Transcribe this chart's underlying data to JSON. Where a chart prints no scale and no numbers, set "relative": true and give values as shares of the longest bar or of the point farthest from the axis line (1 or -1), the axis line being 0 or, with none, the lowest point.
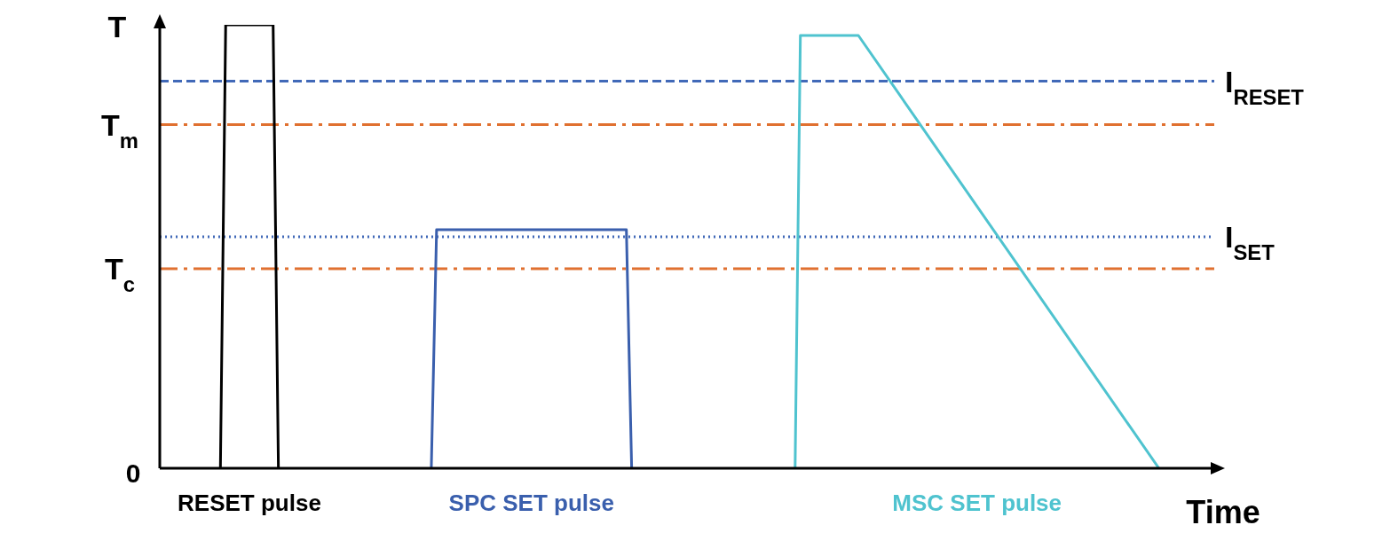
{
  "chart_data": {
    "type": "line",
    "relative": true,
    "ylabel": "T",
    "xlabel": "Time",
    "line_style": "solid",
    "categories": [
      null,
      null,
      null,
      null,
      null,
      null,
      null,
      null,
      null,
      null,
      null,
      null,
      null,
      null,
      null,
      null,
      null,
      null,
      null,
      null,
      null,
      null,
      null,
      null,
      null,
      null,
      null,
      null,
      null,
      null,
      null,
      null,
      null,
      null,
      null,
      null,
      null,
      null,
      null,
      null,
      null,
      null,
      null,
      null,
      null,
      null,
      null,
      null,
      null,
      null,
      null,
      null,
      null,
      null,
      null,
      null,
      null,
      null,
      null,
      null,
      null,
      null,
      null,
      null,
      null,
      null,
      null,
      null,
      null,
      null,
      null,
      null,
      null,
      null,
      null,
      null,
      null,
      null,
      null,
      null,
      null,
      null,
      null,
      null,
      null,
      null,
      null,
      null,
      null,
      null,
      null,
      null,
      null,
      null,
      null,
      null,
      null,
      null,
      null,
      null,
      null,
      null,
      null,
      null,
      null,
      null,
      null,
      null,
      null,
      null,
      null,
      null,
      null,
      null,
      null,
      null,
      null,
      null,
      null,
      null,
      null,
      null,
      null,
      null,
      null,
      null,
      null,
      null,
      null,
      null,
      null,
      null,
      null,
      null,
      null,
      null,
      null,
      null,
      null,
      null,
      null,
      null,
      null,
      null,
      null,
      null,
      null,
      null,
      null,
      null,
      null,
      null,
      null,
      null,
      null,
      null,
      null,
      null,
      null,
      null,
      null,
      null,
      null,
      null,
      null,
      null,
      null,
      null,
      null,
      null,
      null,
      null,
      null,
      null,
      null,
      null,
      null,
      null,
      null,
      null,
      null,
      null,
      null,
      null,
      null,
      null,
      null,
      null,
      null,
      null,
      null,
      null,
      null,
      null,
      null,
      null,
      null,
      null,
      null,
      null
    ],
    "series": [
      {
        "name": "RESET pulse",
        "color": "#000000",
        "values": [
          null,
          null,
          null,
          null,
          null,
          null,
          null,
          null,
          null,
          null,
          null,
          0,
          1,
          null,
          null,
          null,
          null,
          null,
          null,
          null,
          null,
          1,
          0,
          null,
          null,
          null,
          null,
          null,
          null,
          null,
          null,
          null,
          null,
          null,
          null,
          null,
          null,
          null,
          null,
          null,
          null,
          null,
          null,
          null,
          null,
          null,
          null,
          null,
          null,
          null,
          null,
          null,
          null,
          null,
          null,
          null,
          null,
          null,
          null,
          null,
          null,
          null,
          null,
          null,
          null,
          null,
          null,
          null,
          null,
          null,
          null,
          null,
          null,
          null,
          null,
          null,
          null,
          null,
          null,
          null,
          null,
          null,
          null,
          null,
          null,
          null,
          null,
          null,
          null,
          null,
          null,
          null,
          null,
          null,
          null,
          null,
          null,
          null,
          null,
          null,
          null,
          null,
          null,
          null,
          null,
          null,
          null,
          null,
          null,
          null,
          null,
          null,
          null,
          null,
          null,
          null,
          null,
          null,
          null,
          null,
          null,
          null,
          null,
          null,
          null,
          null,
          null,
          null,
          null,
          null,
          null,
          null,
          null,
          null,
          null,
          null,
          null,
          null,
          null,
          null,
          null,
          null,
          null,
          null,
          null,
          null,
          null,
          null,
          null,
          null,
          null,
          null,
          null,
          null,
          null,
          null,
          null,
          null,
          null,
          null,
          null,
          null,
          null,
          null,
          null,
          null,
          null,
          null,
          null,
          null,
          null,
          null,
          null,
          null,
          null,
          null,
          null,
          null,
          null,
          null,
          null,
          null,
          null,
          null,
          null,
          null,
          null,
          null,
          null,
          null,
          null,
          null,
          null,
          null,
          null,
          null,
          null,
          null,
          null,
          null
        ]
      },
      {
        "name": "SPC SET pulse",
        "color": "#3a5fad",
        "values": [
          null,
          null,
          null,
          null,
          null,
          null,
          null,
          null,
          null,
          null,
          null,
          null,
          null,
          null,
          null,
          null,
          null,
          null,
          null,
          null,
          null,
          null,
          null,
          null,
          null,
          null,
          null,
          null,
          null,
          null,
          null,
          null,
          null,
          null,
          null,
          null,
          null,
          null,
          null,
          null,
          null,
          null,
          null,
          null,
          null,
          null,
          null,
          null,
          null,
          null,
          null,
          0,
          0.538,
          null,
          null,
          null,
          null,
          null,
          null,
          null,
          null,
          null,
          null,
          null,
          null,
          null,
          null,
          null,
          null,
          null,
          null,
          null,
          null,
          null,
          null,
          null,
          null,
          null,
          null,
          null,
          null,
          null,
          null,
          null,
          null,
          null,
          null,
          null,
          0.538,
          0,
          null,
          null,
          null,
          null,
          null,
          null,
          null,
          null,
          null,
          null,
          null,
          null,
          null,
          null,
          null,
          null,
          null,
          null,
          null,
          null,
          null,
          null,
          null,
          null,
          null,
          null,
          null,
          null,
          null,
          null,
          null,
          null,
          null,
          null,
          null,
          null,
          null,
          null,
          null,
          null,
          null,
          null,
          null,
          null,
          null,
          null,
          null,
          null,
          null,
          null,
          null,
          null,
          null,
          null,
          null,
          null,
          null,
          null,
          null,
          null,
          null,
          null,
          null,
          null,
          null,
          null,
          null,
          null,
          null,
          null,
          null,
          null,
          null,
          null,
          null,
          null,
          null,
          null,
          null,
          null,
          null,
          null,
          null,
          null,
          null,
          null,
          null,
          null,
          null,
          null,
          null,
          null,
          null,
          null,
          null,
          null,
          null,
          null,
          null,
          null,
          null,
          null,
          null,
          null,
          null,
          null,
          null,
          null,
          null,
          null
        ]
      },
      {
        "name": "MSC SET pulse",
        "color": "#4fc3cf",
        "values": [
          null,
          null,
          null,
          null,
          null,
          null,
          null,
          null,
          null,
          null,
          null,
          null,
          null,
          null,
          null,
          null,
          null,
          null,
          null,
          null,
          null,
          null,
          null,
          null,
          null,
          null,
          null,
          null,
          null,
          null,
          null,
          null,
          null,
          null,
          null,
          null,
          null,
          null,
          null,
          null,
          null,
          null,
          null,
          null,
          null,
          null,
          null,
          null,
          null,
          null,
          null,
          null,
          null,
          null,
          null,
          null,
          null,
          null,
          null,
          null,
          null,
          null,
          null,
          null,
          null,
          null,
          null,
          null,
          null,
          null,
          null,
          null,
          null,
          null,
          null,
          null,
          null,
          null,
          null,
          null,
          null,
          null,
          null,
          null,
          null,
          null,
          null,
          null,
          null,
          null,
          null,
          null,
          null,
          null,
          null,
          null,
          null,
          null,
          null,
          null,
          null,
          null,
          null,
          null,
          null,
          null,
          null,
          null,
          null,
          null,
          null,
          null,
          null,
          null,
          null,
          null,
          null,
          null,
          null,
          null,
          0,
          0.976,
          null,
          null,
          null,
          null,
          null,
          null,
          null,
          null,
          null,
          null,
          0.976,
          null,
          null,
          null,
          null,
          null,
          null,
          null,
          null,
          null,
          null,
          null,
          null,
          null,
          null,
          null,
          null,
          null,
          null,
          null,
          null,
          null,
          null,
          null,
          null,
          null,
          null,
          null,
          null,
          null,
          null,
          null,
          null,
          null,
          null,
          null,
          null,
          null,
          null,
          null,
          null,
          null,
          null,
          null,
          null,
          null,
          null,
          null,
          null,
          null,
          null,
          null,
          null,
          null,
          null,
          null,
          null,
          0,
          null,
          null,
          null,
          null,
          null,
          null,
          null,
          null,
          null,
          null
        ]
      }
    ],
    "ref_lines": [
      {
        "axis": "y",
        "value": 0.873,
        "label": "I$_{RESET}$",
        "color": "#4169b8",
        "line_style": "dashed"
      },
      {
        "axis": "y",
        "value": 0.775,
        "label": "T$_{m}$",
        "color": "#e07030",
        "line_style": "dashdot"
      },
      {
        "axis": "y",
        "value": 0.522,
        "label": "I$_{SET}$",
        "color": "#4169b8",
        "line_style": "dotted"
      },
      {
        "axis": "y",
        "value": 0.45,
        "label": "T$_{c}$",
        "color": "#e07030",
        "line_style": "dashdot"
      }
    ],
    "annotations": [
      "0"
    ]
  }
}
